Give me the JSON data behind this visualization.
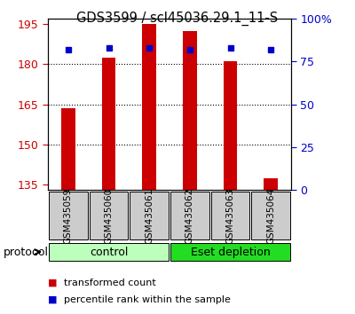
{
  "title": "GDS3599 / scl45036.29.1_11-S",
  "samples": [
    "GSM435059",
    "GSM435060",
    "GSM435061",
    "GSM435062",
    "GSM435063",
    "GSM435064"
  ],
  "transformed_counts": [
    163.5,
    182.5,
    195.0,
    192.5,
    181.0,
    137.5
  ],
  "percentile_ranks": [
    82,
    83,
    83,
    82,
    83,
    82
  ],
  "ylim_left": [
    133,
    197
  ],
  "yticks_left": [
    135,
    150,
    165,
    180,
    195
  ],
  "ylim_right": [
    0,
    100
  ],
  "yticks_right": [
    0,
    25,
    50,
    75,
    100
  ],
  "yticklabels_right": [
    "0",
    "25",
    "50",
    "75",
    "100%"
  ],
  "bar_color": "#cc0000",
  "dot_color": "#0000cc",
  "bar_width": 0.35,
  "ctrl_color": "#bbffbb",
  "dep_color": "#22dd22",
  "sample_box_color": "#cccccc",
  "tick_color_left": "#cc0000",
  "tick_color_right": "#0000cc",
  "legend_items": [
    {
      "color": "#cc0000",
      "label": "transformed count"
    },
    {
      "color": "#0000cc",
      "label": "percentile rank within the sample"
    }
  ]
}
